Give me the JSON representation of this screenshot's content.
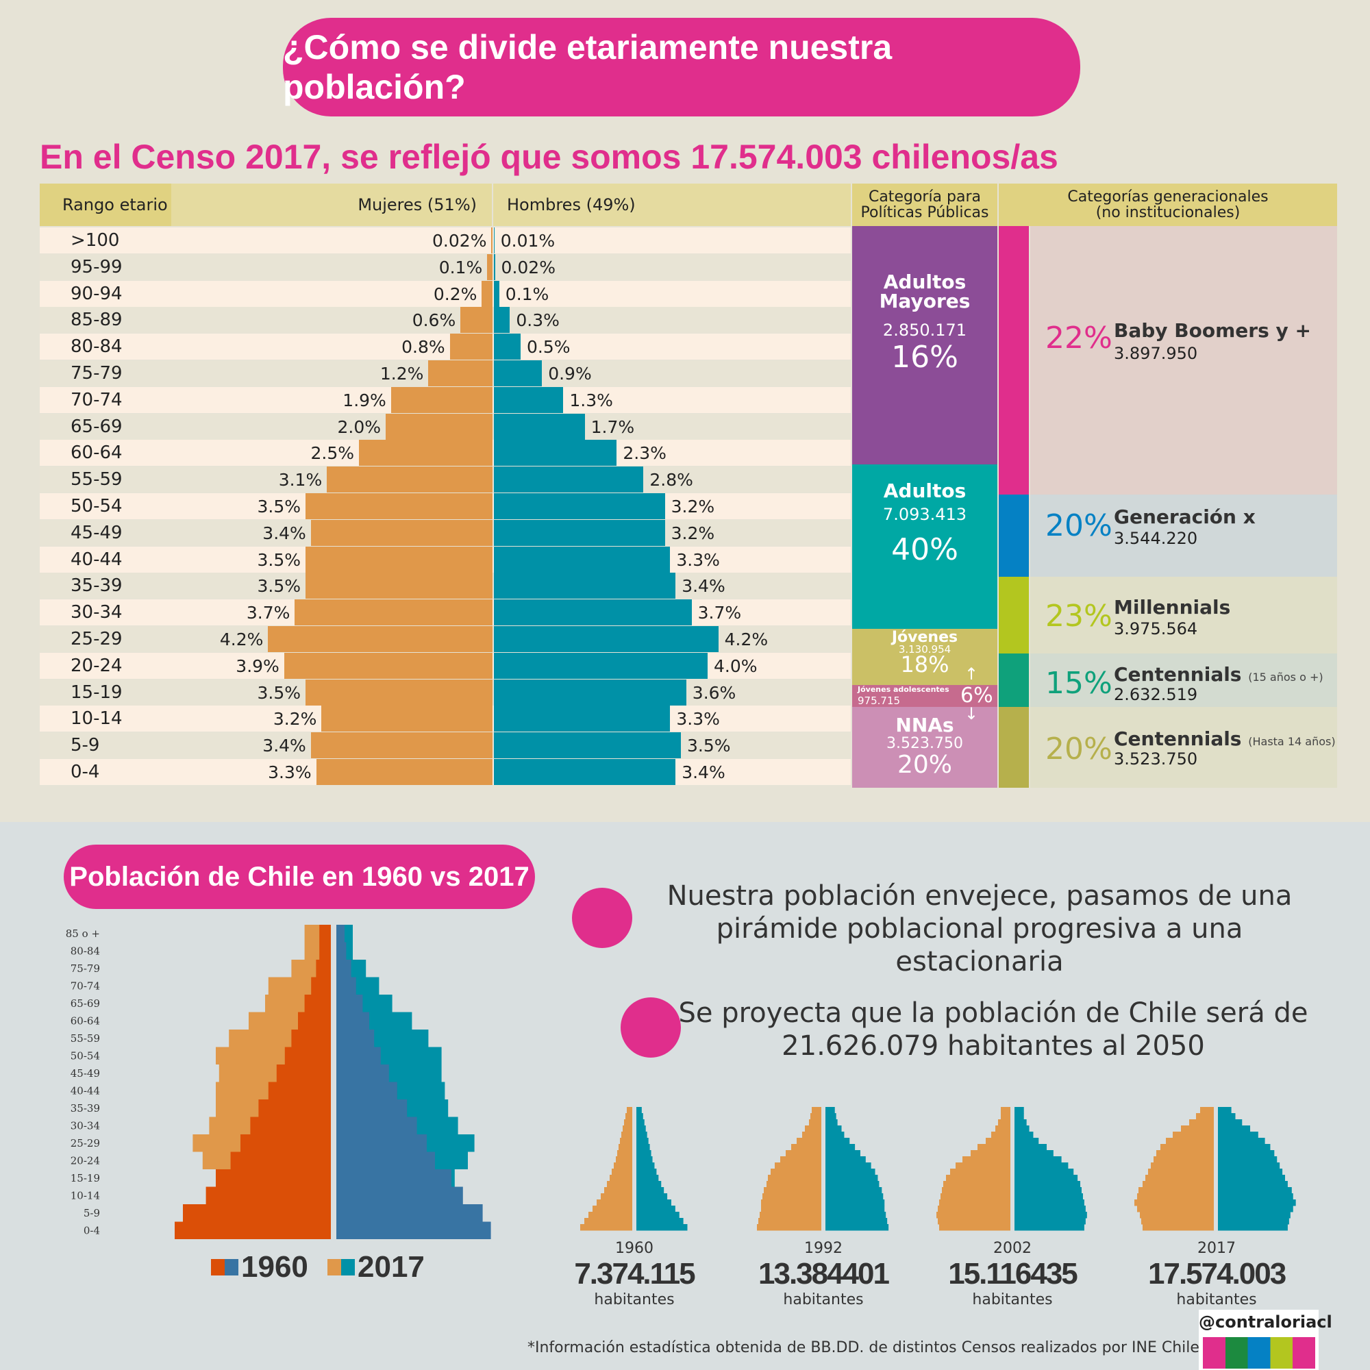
{
  "header": {
    "title": "¿Cómo se divide etariamente nuestra población?",
    "subtitle": "En el Censo 2017, se reflejó que somos 17.574.003 chilenos/as"
  },
  "table_headers": {
    "age": "Rango etario",
    "women": "Mujeres (51%)",
    "men": "Hombres (49%)",
    "policy": "Categoría para Políticas Públicas",
    "generations": "Categorías generacionales (no institucionales)"
  },
  "policy_categories": {
    "mayores": {
      "name": "Adultos Mayores",
      "count": "2.850.171",
      "pct": "16%"
    },
    "adultos": {
      "name": "Adultos",
      "count": "7.093.413",
      "pct": "40%"
    },
    "jovenes": {
      "name": "Jóvenes",
      "count": "3.130.954",
      "pct": "18%"
    },
    "adolescentes": {
      "name": "Jóvenes adolescentes",
      "count": "975.715",
      "pct": "6%"
    },
    "nnas": {
      "name": "NNAs",
      "count": "3.523.750",
      "pct": "20%"
    }
  },
  "generations": {
    "boomers": {
      "pct": "22%",
      "name": "Baby Boomers y +",
      "count": "3.897.950"
    },
    "genx": {
      "pct": "20%",
      "name": "Generación x",
      "count": "3.544.220"
    },
    "millennials": {
      "pct": "23%",
      "name": "Millennials",
      "count": "3.975.564"
    },
    "centennials_a": {
      "pct": "15%",
      "name": "Centennials",
      "note": "(15 años o +)",
      "count": "2.632.519"
    },
    "centennials_b": {
      "pct": "20%",
      "name": "Centennials",
      "note": "(Hasta 14 años)",
      "count": "3.523.750"
    }
  },
  "colors": {
    "accent": "#e02e8c",
    "women": "#e0984a",
    "men": "#0091a7",
    "women_1960": "#db4f07",
    "men_1960": "#3874a3",
    "mayores": "#8c4d97",
    "adultos": "#00a8a4",
    "jovenes": "#cbc066",
    "adolescentes": "#c66b8e",
    "nnas": "#cc8fb5"
  },
  "chart_data": [
    {
      "type": "bar",
      "title": "En el Censo 2017, se reflejó que somos 17.574.003 chilenos/as",
      "categories": [
        ">100",
        "95-99",
        "90-94",
        "85-89",
        "80-84",
        "75-79",
        "70-74",
        "65-69",
        "60-64",
        "55-59",
        "50-54",
        "45-49",
        "40-44",
        "35-39",
        "30-34",
        "25-29",
        "20-24",
        "15-19",
        "10-14",
        "5-9",
        "0-4"
      ],
      "series": [
        {
          "name": "Mujeres (51%)",
          "values": [
            0.02,
            0.1,
            0.2,
            0.6,
            0.8,
            1.2,
            1.9,
            2.0,
            2.5,
            3.1,
            3.5,
            3.4,
            3.5,
            3.5,
            3.7,
            4.2,
            3.9,
            3.5,
            3.2,
            3.4,
            3.3
          ],
          "labels": [
            "0.02%",
            "0.1%",
            "0.2%",
            "0.6%",
            "0.8%",
            "1.2%",
            "1.9%",
            "2.0%",
            "2.5%",
            "3.1%",
            "3.5%",
            "3.4%",
            "3.5%",
            "3.5%",
            "3.7%",
            "4.2%",
            "3.9%",
            "3.5%",
            "3.2%",
            "3.4%",
            "3.3%"
          ]
        },
        {
          "name": "Hombres (49%)",
          "values": [
            0.01,
            0.02,
            0.1,
            0.3,
            0.5,
            0.9,
            1.3,
            1.7,
            2.3,
            2.8,
            3.2,
            3.2,
            3.3,
            3.4,
            3.7,
            4.2,
            4.0,
            3.6,
            3.3,
            3.5,
            3.4
          ],
          "labels": [
            "0.01%",
            "0.02%",
            "0.1%",
            "0.3%",
            "0.5%",
            "0.9%",
            "1.3%",
            "1.7%",
            "2.3%",
            "2.8%",
            "3.2%",
            "3.2%",
            "3.3%",
            "3.4%",
            "3.7%",
            "4.2%",
            "4.0%",
            "3.6%",
            "3.3%",
            "3.5%",
            "3.4%"
          ]
        }
      ]
    },
    {
      "type": "bar",
      "title": "Población de Chile en 1960 vs 2017",
      "categories": [
        "85 o +",
        "80-84",
        "75-79",
        "70-74",
        "65-69",
        "60-64",
        "55-59",
        "50-54",
        "45-49",
        "40-44",
        "35-39",
        "30-34",
        "25-29",
        "20-24",
        "15-19",
        "10-14",
        "5-9",
        "0-4"
      ],
      "series": [
        {
          "name": "1960 mujeres",
          "values": [
            0.35,
            0.35,
            0.45,
            0.6,
            0.8,
            1.0,
            1.2,
            1.4,
            1.65,
            1.9,
            2.2,
            2.45,
            2.75,
            3.05,
            3.5,
            3.8,
            4.5,
            4.75
          ]
        },
        {
          "name": "1960 hombres",
          "values": [
            0.25,
            0.3,
            0.45,
            0.6,
            0.8,
            1.0,
            1.15,
            1.35,
            1.6,
            1.85,
            2.15,
            2.45,
            2.75,
            3.0,
            3.5,
            3.85,
            4.45,
            4.7
          ]
        },
        {
          "name": "2017 mujeres",
          "values": [
            0.8,
            0.8,
            1.2,
            1.9,
            2.0,
            2.5,
            3.1,
            3.5,
            3.4,
            3.5,
            3.5,
            3.7,
            4.2,
            3.9,
            3.5,
            3.2,
            3.4,
            3.3
          ]
        },
        {
          "name": "2017 hombres",
          "values": [
            0.5,
            0.5,
            0.9,
            1.3,
            1.7,
            2.3,
            2.8,
            3.2,
            3.2,
            3.3,
            3.4,
            3.7,
            4.2,
            4.0,
            3.6,
            3.3,
            3.5,
            3.4
          ]
        }
      ],
      "legend": [
        "1960",
        "2017"
      ]
    }
  ],
  "bottom": {
    "section_title": "Población de Chile en 1960 vs 2017",
    "note1": "Nuestra población envejece, pasamos de una pirámide poblacional progresiva a una estacionaria",
    "note2": "Se proyecta que la población de Chile será de 21.626.079 habitantes al 2050",
    "legend_1960": "1960",
    "legend_2017": "2017",
    "mini": [
      {
        "year": "1960",
        "total": "7.374.115",
        "unit": "habitantes"
      },
      {
        "year": "1992",
        "total": "13.384401",
        "unit": "habitantes"
      },
      {
        "year": "2002",
        "total": "15.116435",
        "unit": "habitantes"
      },
      {
        "year": "2017",
        "total": "17.574.003",
        "unit": "habitantes"
      }
    ],
    "footnote": "*Información estadística obtenida de BB.DD. de distintos Censos realizados por INE Chile",
    "handle": "@contraloriacl"
  }
}
